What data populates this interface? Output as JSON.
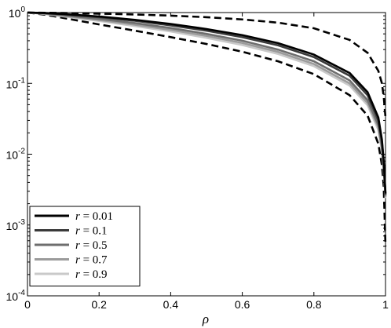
{
  "chart_data": {
    "type": "line",
    "title": "",
    "xlabel": "ρ",
    "ylabel": "",
    "xlim": [
      0,
      1
    ],
    "ylim": [
      0.0001,
      1
    ],
    "yscale": "log",
    "grid": false,
    "legend_position": "bottom-left",
    "x_ticks": [
      "0",
      "0.2",
      "0.4",
      "0.6",
      "0.8",
      "1"
    ],
    "y_ticks": [
      {
        "base": "10",
        "exp": "0"
      },
      {
        "base": "10",
        "exp": "-1"
      },
      {
        "base": "10",
        "exp": "-2"
      },
      {
        "base": "10",
        "exp": "-3"
      },
      {
        "base": "10",
        "exp": "-4"
      }
    ],
    "series": [
      {
        "name": "r = 0.01",
        "var": "r",
        "val": "0.01",
        "color": "#000000",
        "points": [
          [
            0,
            1
          ],
          [
            0.05,
            0.985
          ],
          [
            0.1,
            0.955
          ],
          [
            0.2,
            0.88
          ],
          [
            0.3,
            0.79
          ],
          [
            0.4,
            0.69
          ],
          [
            0.5,
            0.585
          ],
          [
            0.6,
            0.48
          ],
          [
            0.7,
            0.37
          ],
          [
            0.8,
            0.255
          ],
          [
            0.9,
            0.14
          ],
          [
            0.95,
            0.075
          ],
          [
            0.98,
            0.033
          ],
          [
            0.99,
            0.016
          ],
          [
            0.995,
            0.008
          ],
          [
            1.0,
            0.0028
          ]
        ]
      },
      {
        "name": "r = 0.1",
        "var": "r",
        "val": "0.1",
        "color": "#3a3a3a",
        "points": [
          [
            0,
            1
          ],
          [
            0.05,
            0.98
          ],
          [
            0.1,
            0.945
          ],
          [
            0.2,
            0.86
          ],
          [
            0.3,
            0.765
          ],
          [
            0.4,
            0.66
          ],
          [
            0.5,
            0.555
          ],
          [
            0.6,
            0.45
          ],
          [
            0.7,
            0.345
          ],
          [
            0.8,
            0.235
          ],
          [
            0.9,
            0.128
          ],
          [
            0.95,
            0.068
          ],
          [
            0.98,
            0.03
          ],
          [
            0.99,
            0.015
          ],
          [
            0.995,
            0.0075
          ],
          [
            1.0,
            0.0027
          ]
        ]
      },
      {
        "name": "r = 0.5",
        "var": "r",
        "val": "0.5",
        "color": "#6e6e6e",
        "points": [
          [
            0,
            1
          ],
          [
            0.05,
            0.97
          ],
          [
            0.1,
            0.92
          ],
          [
            0.2,
            0.815
          ],
          [
            0.3,
            0.71
          ],
          [
            0.4,
            0.605
          ],
          [
            0.5,
            0.5
          ],
          [
            0.6,
            0.4
          ],
          [
            0.7,
            0.3
          ],
          [
            0.8,
            0.205
          ],
          [
            0.9,
            0.11
          ],
          [
            0.95,
            0.058
          ],
          [
            0.98,
            0.026
          ],
          [
            0.99,
            0.013
          ],
          [
            0.995,
            0.0068
          ],
          [
            1.0,
            0.0026
          ]
        ]
      },
      {
        "name": "r = 0.7",
        "var": "r",
        "val": "0.7",
        "color": "#9b9b9b",
        "points": [
          [
            0,
            1
          ],
          [
            0.05,
            0.96
          ],
          [
            0.1,
            0.9
          ],
          [
            0.2,
            0.785
          ],
          [
            0.3,
            0.675
          ],
          [
            0.4,
            0.57
          ],
          [
            0.5,
            0.468
          ],
          [
            0.6,
            0.372
          ],
          [
            0.7,
            0.278
          ],
          [
            0.8,
            0.188
          ],
          [
            0.9,
            0.1
          ],
          [
            0.95,
            0.053
          ],
          [
            0.98,
            0.024
          ],
          [
            0.99,
            0.012
          ],
          [
            0.995,
            0.0064
          ],
          [
            1.0,
            0.0025
          ]
        ]
      },
      {
        "name": "r = 0.9",
        "var": "r",
        "val": "0.9",
        "color": "#c9c9c9",
        "points": [
          [
            0,
            1
          ],
          [
            0.05,
            0.95
          ],
          [
            0.1,
            0.885
          ],
          [
            0.2,
            0.76
          ],
          [
            0.3,
            0.645
          ],
          [
            0.4,
            0.54
          ],
          [
            0.5,
            0.44
          ],
          [
            0.6,
            0.348
          ],
          [
            0.7,
            0.26
          ],
          [
            0.8,
            0.175
          ],
          [
            0.9,
            0.093
          ],
          [
            0.95,
            0.049
          ],
          [
            0.98,
            0.022
          ],
          [
            0.99,
            0.011
          ],
          [
            0.995,
            0.006
          ],
          [
            1.0,
            0.0024
          ]
        ]
      }
    ],
    "bounds": [
      {
        "style": "dashed",
        "color": "#000000",
        "points": [
          [
            0,
            1
          ],
          [
            0.1,
            0.985
          ],
          [
            0.2,
            0.965
          ],
          [
            0.3,
            0.94
          ],
          [
            0.4,
            0.905
          ],
          [
            0.5,
            0.86
          ],
          [
            0.6,
            0.8
          ],
          [
            0.7,
            0.72
          ],
          [
            0.8,
            0.6
          ],
          [
            0.9,
            0.41
          ],
          [
            0.95,
            0.27
          ],
          [
            0.98,
            0.15
          ],
          [
            0.99,
            0.1
          ],
          [
            0.995,
            0.065
          ],
          [
            1.0,
            0.033
          ]
        ]
      },
      {
        "style": "dashed",
        "color": "#000000",
        "points": [
          [
            0,
            1
          ],
          [
            0.05,
            0.93
          ],
          [
            0.1,
            0.84
          ],
          [
            0.2,
            0.68
          ],
          [
            0.3,
            0.555
          ],
          [
            0.4,
            0.45
          ],
          [
            0.5,
            0.36
          ],
          [
            0.6,
            0.28
          ],
          [
            0.7,
            0.205
          ],
          [
            0.8,
            0.135
          ],
          [
            0.9,
            0.068
          ],
          [
            0.95,
            0.035
          ],
          [
            0.98,
            0.014
          ],
          [
            0.99,
            0.007
          ],
          [
            0.995,
            0.0035
          ],
          [
            1.0,
            0.0005
          ]
        ]
      }
    ]
  }
}
